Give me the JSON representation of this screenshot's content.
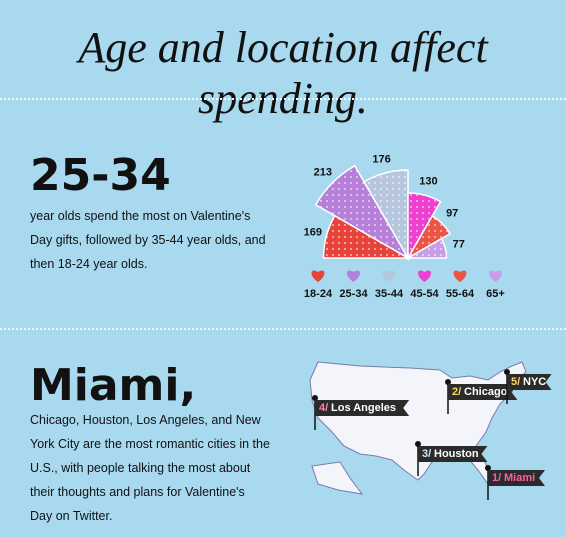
{
  "title": "Age and location affect spending.",
  "section1": {
    "headline": "25-34",
    "body": "year olds spend the most on Valentine's Day gifts, followed by 35-44 year olds, and then 18-24 year olds."
  },
  "chart_data": {
    "type": "rose",
    "categories": [
      "18-24",
      "25-34",
      "35-44",
      "45-54",
      "55-64",
      "65+"
    ],
    "values": [
      169,
      213,
      176,
      130,
      97,
      77
    ],
    "colors": [
      "#e8433b",
      "#b67fd9",
      "#b5c6de",
      "#ef3fd0",
      "#ec5545",
      "#c99ce9"
    ]
  },
  "section2": {
    "headline": "Miami,",
    "body": "Chicago, Houston, Los Angeles, and New York City are the most romantic cities in the U.S., with people talking the most about their thoughts and plans for Valentine's Day on Twitter."
  },
  "map": {
    "pins": [
      {
        "rank": "4/",
        "city": "Los Angeles"
      },
      {
        "rank": "2/",
        "city": "Chicago"
      },
      {
        "rank": "5/",
        "city": "NYC"
      },
      {
        "rank": "3/",
        "city": "Houston"
      },
      {
        "rank": "1/",
        "city": "Miami"
      }
    ]
  }
}
